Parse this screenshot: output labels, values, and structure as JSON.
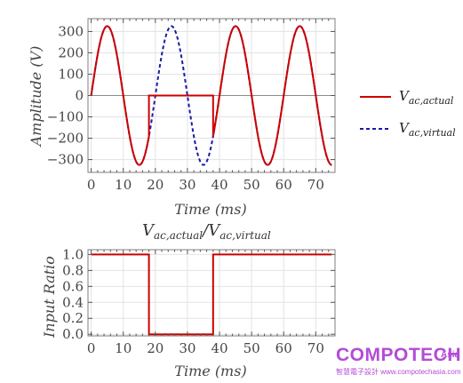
{
  "chart_data": [
    {
      "type": "line",
      "title": "",
      "xlabel": "Time (ms)",
      "ylabel": "Amplitude (V)",
      "xlim": [
        -1,
        76
      ],
      "ylim": [
        -360,
        360
      ],
      "x_ticks": [
        "0",
        "10",
        "20",
        "30",
        "40",
        "50",
        "60",
        "70"
      ],
      "y_ticks": [
        "300",
        "200",
        "100",
        "0",
        "−100",
        "−200",
        "−300"
      ],
      "grid": true,
      "legend_position": "right",
      "signal": {
        "amplitude": 325,
        "period_ms": 20,
        "duration_ms": 75,
        "zero_interval_ms": [
          18,
          38
        ]
      },
      "series": [
        {
          "name_main": "V",
          "name_sub": "ac,actual",
          "color": "#cc0000",
          "style": "solid",
          "description": "325·sin(2πt/20) V, except 0 V between t = 18 ms and t = 38 ms"
        },
        {
          "name_main": "V",
          "name_sub": "ac,virtual",
          "color": "#1a1aa6",
          "style": "dashed",
          "description": "325·sin(2πt/20) V for all t"
        }
      ]
    },
    {
      "type": "line",
      "title_main": "V",
      "title_sub_1": "ac,actual",
      "title_slash": "/",
      "title_main_2": "V",
      "title_sub_2": "ac,virtual",
      "xlabel": "Time (ms)",
      "ylabel": "Input Ratio",
      "xlim": [
        -1,
        76
      ],
      "ylim": [
        -0.02,
        1.06
      ],
      "x_ticks": [
        "0",
        "10",
        "20",
        "30",
        "40",
        "50",
        "60",
        "70"
      ],
      "y_ticks": [
        "1.0",
        "0.8",
        "0.6",
        "0.4",
        "0.2",
        "0.0"
      ],
      "grid": true,
      "series": [
        {
          "color": "#cc0000",
          "style": "solid",
          "x": [
            0,
            18,
            18,
            38,
            38,
            75
          ],
          "y": [
            1,
            1,
            0,
            0,
            1,
            1
          ]
        }
      ]
    }
  ],
  "watermark": {
    "brand": "COMPOTECH",
    "region": "Asia",
    "subtitle": "智慧電子設計 www.compotechasia.com",
    "color": "#b44bd6"
  }
}
